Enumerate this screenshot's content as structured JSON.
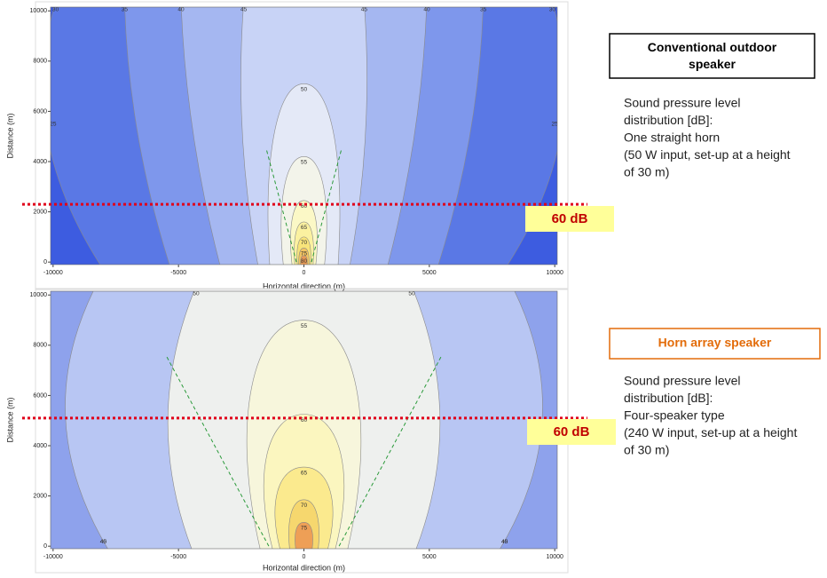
{
  "chart_data": [
    {
      "type": "contour",
      "title": "Conventional outdoor speaker",
      "description": [
        "Sound pressure level",
        "distribution [dB]:",
        "One straight horn",
        "(50 W input, set-up at a height",
        "of 30 m)"
      ],
      "xlabel": "Horizontal direction (m)",
      "ylabel": "Distance (m)",
      "xlim": [
        -10100,
        10100
      ],
      "ylim": [
        -100,
        10150
      ],
      "xticks": [
        -10000,
        -5000,
        0,
        5000,
        10000
      ],
      "yticks": [
        0,
        2000,
        4000,
        6000,
        8000,
        10000
      ],
      "levels": [
        25,
        30,
        35,
        40,
        45,
        50,
        55,
        60,
        65,
        70,
        75,
        80
      ],
      "colors": [
        "#3d5ce0",
        "#5a78e5",
        "#7e97ec",
        "#a5b7f1",
        "#c8d3f6",
        "#e4e9f7",
        "#f3f4ea",
        "#fbf8c6",
        "#fbf1a0",
        "#f8e47a",
        "#f2c462",
        "#e99a56"
      ],
      "threshold": 2300,
      "annotation": "60 dB",
      "title_color": "#000000"
    },
    {
      "type": "contour",
      "title": "Horn array speaker",
      "description": [
        "Sound pressure level",
        "distribution [dB]:",
        "Four-speaker type",
        "(240 W input, set-up at a height",
        "of 30 m)"
      ],
      "xlabel": "Horizontal direction (m)",
      "ylabel": "Distance (m)",
      "xlim": [
        -10100,
        10100
      ],
      "ylim": [
        -100,
        10150
      ],
      "xticks": [
        -10000,
        -5000,
        0,
        5000,
        10000
      ],
      "yticks": [
        0,
        2000,
        4000,
        6000,
        8000,
        10000
      ],
      "levels": [
        40,
        45,
        50,
        55,
        60,
        65,
        70,
        75
      ],
      "colors": [
        "#8ea2ec",
        "#b8c6f3",
        "#eef0ee",
        "#f7f6dc",
        "#fbf6bf",
        "#fbea8e",
        "#f6d76e",
        "#ee9f56"
      ],
      "threshold": 5100,
      "annotation": "60 dB",
      "title_color": "#e36c0a"
    }
  ]
}
